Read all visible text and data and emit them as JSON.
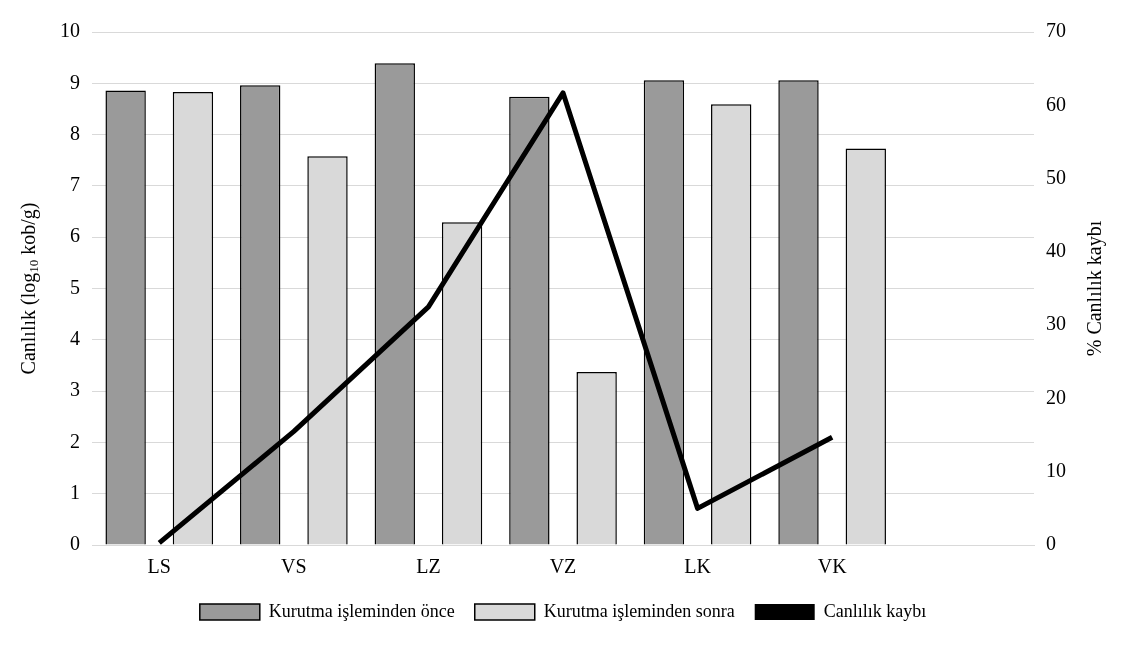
{
  "chart_data": {
    "type": "bar",
    "categories": [
      "LS",
      "VS",
      "LZ",
      "VZ",
      "LK",
      "VK",
      null
    ],
    "series": [
      {
        "name": "Kurutma işleminden önce",
        "color": "#9a9a9a",
        "values": [
          8.86,
          8.96,
          9.39,
          8.74,
          9.06,
          9.06,
          null
        ]
      },
      {
        "name": "Kurutma işleminden sonra",
        "color": "#d9d9d9",
        "values": [
          8.83,
          7.58,
          6.29,
          3.37,
          8.59,
          7.73,
          null
        ]
      },
      {
        "name": "Canlılık kaybı",
        "type": "line",
        "axis": "y2",
        "color": "#000000",
        "values": [
          0.3,
          15.5,
          32.5,
          61.7,
          5,
          14.7,
          null
        ]
      }
    ],
    "ylabel": "Canlılık (log$_{10}$ kob/g)",
    "y2label": "% Canlılık kaybı",
    "ylim": [
      0,
      10
    ],
    "yticks": [
      0,
      1,
      2,
      3,
      4,
      5,
      6,
      7,
      8,
      9,
      10
    ],
    "y2lim": [
      0,
      70
    ],
    "y2ticks": [
      0,
      10,
      20,
      30,
      40,
      50,
      60,
      70
    ],
    "grid": "y",
    "legend": "bottom",
    "marker": "none",
    "line_style": "solid"
  }
}
